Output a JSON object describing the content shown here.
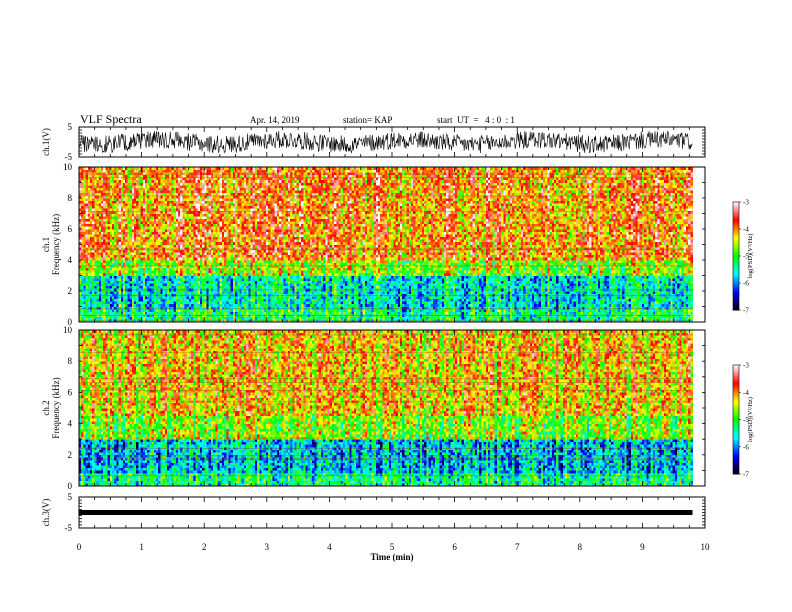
{
  "header": {
    "title": "VLF Spectra",
    "date": "Apr. 14, 2019",
    "station": "station= KAP",
    "start_ut": "start  UT  =   4 : 0  : 1"
  },
  "chart_data": [
    {
      "type": "line",
      "name": "ch1-waveform",
      "ylabel": "ch.1(V)",
      "x_range": [
        0,
        10
      ],
      "ylim": [
        -5,
        5
      ],
      "yticks": [
        5,
        -5
      ],
      "signal_end_x": 9.8,
      "approx_amplitude_v": [
        -3,
        3
      ]
    },
    {
      "type": "heatmap",
      "name": "ch1-spectrogram",
      "ylabel_lines": [
        "ch.1",
        "Frequency  (kHz)"
      ],
      "x_range": [
        0,
        10
      ],
      "ylim": [
        0,
        10
      ],
      "yticks": [
        0,
        2,
        4,
        6,
        8,
        10
      ],
      "signal_end_x": 9.8,
      "colorbar": {
        "label": "log(PSD)(V²/Hz)",
        "range": [
          -7,
          -3
        ],
        "ticks": [
          -3,
          -4,
          -5,
          -6,
          -7
        ],
        "colors": [
          "#000000",
          "#0000ff",
          "#00ffff",
          "#00ff00",
          "#ffff00",
          "#ff0000",
          "#ffffff"
        ]
      },
      "bands": [
        {
          "f_range": [
            0,
            0.8
          ],
          "level": -5.2
        },
        {
          "f_range": [
            0.8,
            3
          ],
          "level": -5.5
        },
        {
          "f_range": [
            3,
            4
          ],
          "level": -4.6
        },
        {
          "f_range": [
            4,
            10
          ],
          "level": -3.9
        }
      ]
    },
    {
      "type": "heatmap",
      "name": "ch2-spectrogram",
      "ylabel_lines": [
        "ch.2",
        "Frequency  (kHz)"
      ],
      "x_range": [
        0,
        10
      ],
      "ylim": [
        0,
        10
      ],
      "yticks": [
        0,
        2,
        4,
        6,
        8,
        10
      ],
      "signal_end_x": 9.8,
      "colorbar": {
        "label": "log(PSD)(V²/Hz)",
        "range": [
          -7,
          -3
        ],
        "ticks": [
          -3,
          -4,
          -5,
          -6,
          -7
        ],
        "colors": [
          "#000000",
          "#0000ff",
          "#00ffff",
          "#00ff00",
          "#ffff00",
          "#ff0000",
          "#ffffff"
        ]
      },
      "bands": [
        {
          "f_range": [
            0,
            0.8
          ],
          "level": -5.3
        },
        {
          "f_range": [
            0.8,
            3
          ],
          "level": -5.8
        },
        {
          "f_range": [
            3,
            4.5
          ],
          "level": -4.7
        },
        {
          "f_range": [
            4.5,
            10
          ],
          "level": -4.2
        }
      ]
    },
    {
      "type": "line",
      "name": "ch3-waveform",
      "ylabel": "ch.3(V)",
      "x_range": [
        0,
        10
      ],
      "ylim": [
        -5,
        5
      ],
      "yticks": [
        5,
        -5
      ],
      "signal_end_x": 9.8,
      "approx_value_v": 0,
      "xlabel": "Time  (min)",
      "xticks": [
        0,
        1,
        2,
        3,
        4,
        5,
        6,
        7,
        8,
        9,
        10
      ]
    }
  ]
}
